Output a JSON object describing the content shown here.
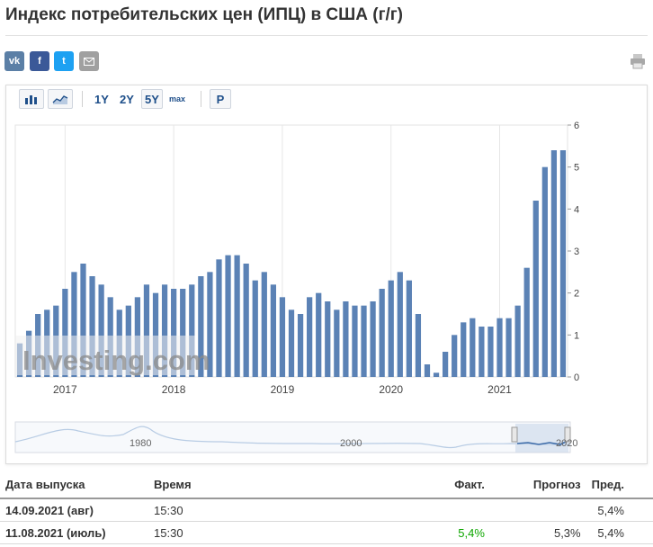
{
  "title": "Индекс потребительских цен (ИПЦ) в США (г/г)",
  "share": {
    "vk_label": "vk",
    "fb_label": "f",
    "tw_label": "t"
  },
  "toolbar": {
    "range_1y": "1Y",
    "range_2y": "2Y",
    "range_5y": "5Y",
    "range_max": "max",
    "mode_p": "P",
    "active_range": "5Y"
  },
  "watermark": "Investing.com",
  "navigator": {
    "labels": [
      "1980",
      "2000",
      "2020"
    ]
  },
  "colors": {
    "bar": "#5b82b5",
    "positive": "#0ea600"
  },
  "chart_data": {
    "type": "bar",
    "x_labels": [
      "2017",
      "2018",
      "2019",
      "2020",
      "2021"
    ],
    "yticks": [
      0,
      1,
      2,
      3,
      4,
      5,
      6
    ],
    "ylim": [
      0,
      6
    ],
    "y_axis_position": "right",
    "grid": "vertical",
    "series": [
      {
        "values": [
          0.8,
          1.1,
          1.5,
          1.6,
          1.7,
          2.1,
          2.5,
          2.7,
          2.4,
          2.2,
          1.9,
          1.6,
          1.7,
          1.9,
          2.2,
          2.0,
          2.2,
          2.1,
          2.1,
          2.2,
          2.4,
          2.5,
          2.8,
          2.9,
          2.9,
          2.7,
          2.3,
          2.5,
          2.2,
          1.9,
          1.6,
          1.5,
          1.9,
          2.0,
          1.8,
          1.6,
          1.8,
          1.7,
          1.7,
          1.8,
          2.1,
          2.3,
          2.5,
          2.3,
          1.5,
          0.3,
          0.1,
          0.6,
          1.0,
          1.3,
          1.4,
          1.2,
          1.2,
          1.4,
          1.4,
          1.7,
          2.6,
          4.2,
          5.0,
          5.4,
          5.4
        ]
      }
    ]
  },
  "table": {
    "headers": [
      "Дата выпуска",
      "Время",
      "Факт.",
      "Прогноз",
      "Пред."
    ],
    "rows": [
      [
        "14.09.2021 (авг)",
        "15:30",
        "",
        "",
        "5,4%"
      ],
      [
        "11.08.2021 (июль)",
        "15:30",
        "5,4%",
        "5,3%",
        "5,4%"
      ]
    ]
  }
}
